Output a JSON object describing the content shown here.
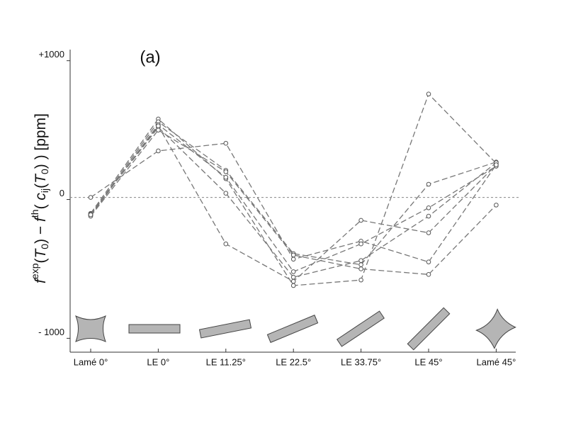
{
  "chart_data": {
    "type": "line",
    "title": "(a)",
    "ylabel": [
      "f",
      "exp",
      "(",
      "T",
      "0",
      ") − ",
      "f",
      "th",
      "( ",
      "c",
      "ij",
      "(",
      "T",
      "0",
      ") )  [ppm]"
    ],
    "categories": [
      "Lamé 0°",
      "LE 0°",
      "LE 11.25°",
      "LE 22.5°",
      "LE 33.75°",
      "LE 45°",
      "Lamé 45°"
    ],
    "ylim": [
      -1100,
      1080
    ],
    "yticks": [
      {
        "value": 1000,
        "label": "+1000"
      },
      0,
      {
        "value": -1000,
        "label": "- 1000"
      }
    ],
    "reference_line": 15,
    "color": "#777777",
    "series": [
      {
        "values": [
          15,
          350,
          405,
          -430,
          -300,
          -450,
          250
        ]
      },
      {
        "values": [
          -100,
          580,
          150,
          -620,
          -580,
          760,
          260
        ]
      },
      {
        "values": [
          -110,
          560,
          210,
          -390,
          -470,
          110,
          270
        ]
      },
      {
        "values": [
          -115,
          540,
          160,
          -520,
          -320,
          -60,
          240
        ]
      },
      {
        "values": [
          -105,
          520,
          45,
          -560,
          -440,
          -120,
          265
        ]
      },
      {
        "values": [
          -120,
          500,
          200,
          -400,
          -500,
          -540,
          -40
        ]
      },
      {
        "values": [
          -110,
          530,
          -320,
          -590,
          -150,
          -240,
          250
        ]
      }
    ]
  }
}
